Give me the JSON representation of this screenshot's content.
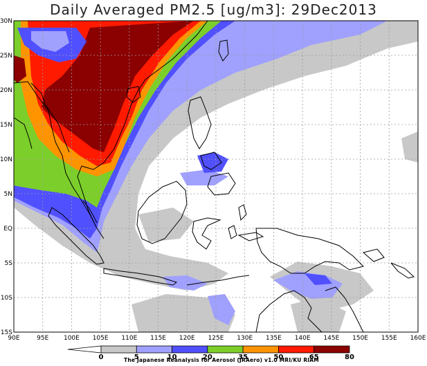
{
  "title": "Daily Averaged PM2.5 [ug/m3]: 29Dec2013",
  "map": {
    "lon_labels": [
      "90E",
      "95E",
      "100E",
      "105E",
      "110E",
      "115E",
      "120E",
      "125E",
      "130E",
      "135E",
      "140E",
      "145E",
      "150E",
      "155E",
      "160E"
    ],
    "lat_labels": [
      "30N",
      "25N",
      "20N",
      "15N",
      "10N",
      "5N",
      "EQ",
      "5S",
      "10S",
      "15S"
    ],
    "region": "Southeast Asia / Maritime Continent"
  },
  "colorbar": {
    "labels": [
      "0",
      "5",
      "10",
      "20",
      "35",
      "50",
      "65",
      "80"
    ],
    "colors": [
      "#ffffff",
      "#c8c8c8",
      "#a0a0ff",
      "#5050ff",
      "#7ccf2a",
      "#ff9400",
      "#ff1a00",
      "#8b0000"
    ]
  },
  "credit": "The Japanese Reanalysis for Aerosol (JRAero) v1.0 MRI/KU RIAM"
}
